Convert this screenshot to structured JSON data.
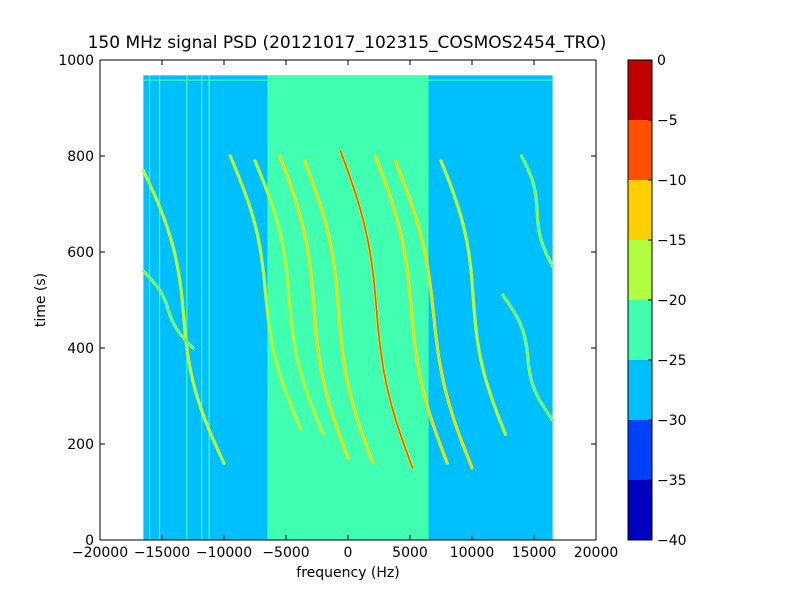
{
  "chart_data": {
    "type": "heatmap",
    "title": "150 MHz signal PSD (20121017_102315_COSMOS2454_TRO)",
    "xlabel": "frequency (Hz)",
    "ylabel": "time (s)",
    "xlim": [
      -20000,
      20000
    ],
    "ylim": [
      0,
      1000
    ],
    "x_ticks": [
      -20000,
      -15000,
      -10000,
      -5000,
      0,
      5000,
      10000,
      15000,
      20000
    ],
    "x_tick_labels": [
      "−20000",
      "−15000",
      "−10000",
      "−5000",
      "0",
      "5000",
      "10000",
      "15000",
      "20000"
    ],
    "y_ticks": [
      0,
      200,
      400,
      600,
      800,
      1000
    ],
    "y_tick_labels": [
      "0",
      "200",
      "400",
      "600",
      "800",
      "1000"
    ],
    "data_extent": {
      "x": [
        -16500,
        16500
      ],
      "y": [
        0,
        968
      ]
    },
    "colorbar": {
      "range": [
        -40,
        0
      ],
      "ticks": [
        0,
        -5,
        -10,
        -15,
        -20,
        -25,
        -30,
        -35,
        -40
      ],
      "tick_labels": [
        "0",
        "−5",
        "−10",
        "−15",
        "−20",
        "−25",
        "−30",
        "−35",
        "−40"
      ],
      "levels": [
        {
          "range": [
            -40,
            -35
          ],
          "color": "#0000c0"
        },
        {
          "range": [
            -35,
            -30
          ],
          "color": "#0040ff"
        },
        {
          "range": [
            -30,
            -25
          ],
          "color": "#00bfff"
        },
        {
          "range": [
            -25,
            -20
          ],
          "color": "#40ffb0"
        },
        {
          "range": [
            -20,
            -15
          ],
          "color": "#b0ff40"
        },
        {
          "range": [
            -15,
            -10
          ],
          "color": "#ffd000"
        },
        {
          "range": [
            -10,
            -5
          ],
          "color": "#ff5000"
        },
        {
          "range": [
            -5,
            0
          ],
          "color": "#c00000"
        }
      ]
    },
    "background_level": -28,
    "center_band": {
      "x": [
        -6500,
        6500
      ],
      "level": -23
    },
    "traces": [
      {
        "f_top": -16500,
        "t_top": 770,
        "f_bot": -10000,
        "t_bot": 160,
        "shift": 2200,
        "peak_level": -18
      },
      {
        "f_top": -16500,
        "t_top": 560,
        "f_bot": -12500,
        "t_bot": 400,
        "shift": 1000,
        "peak_level": -20
      },
      {
        "f_top": -9500,
        "t_top": 800,
        "f_bot": -3800,
        "t_bot": 230,
        "shift": 1800,
        "peak_level": -17
      },
      {
        "f_top": -7500,
        "t_top": 790,
        "f_bot": -2000,
        "t_bot": 220,
        "shift": 1800,
        "peak_level": -17
      },
      {
        "f_top": -5500,
        "t_top": 800,
        "f_bot": 0,
        "t_bot": 170,
        "shift": 1800,
        "peak_level": -12
      },
      {
        "f_top": -3500,
        "t_top": 790,
        "f_bot": 2000,
        "t_bot": 160,
        "shift": 1800,
        "peak_level": -12
      },
      {
        "f_top": -600,
        "t_top": 810,
        "f_bot": 5200,
        "t_bot": 150,
        "shift": 1800,
        "peak_level": -8
      },
      {
        "f_top": 2200,
        "t_top": 800,
        "f_bot": 8000,
        "t_bot": 160,
        "shift": 1800,
        "peak_level": -10
      },
      {
        "f_top": 3800,
        "t_top": 790,
        "f_bot": 10000,
        "t_bot": 150,
        "shift": 1800,
        "peak_level": -12
      },
      {
        "f_top": 7500,
        "t_top": 790,
        "f_bot": 12700,
        "t_bot": 220,
        "shift": 1800,
        "peak_level": -17
      },
      {
        "f_top": 12500,
        "t_top": 510,
        "f_bot": 16500,
        "t_bot": 250,
        "shift": 1500,
        "peak_level": -20
      },
      {
        "f_top": 14000,
        "t_top": 800,
        "f_bot": 16500,
        "t_bot": 570,
        "shift": 1000,
        "peak_level": -20
      }
    ],
    "vertical_lines": [
      -16000,
      -15200,
      -13000,
      -11800,
      -11200
    ],
    "grid": false,
    "legend": "none"
  }
}
